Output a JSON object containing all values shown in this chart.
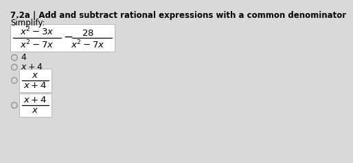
{
  "title": "7.2a | Add and subtract rational expressions with a common denominator",
  "subtitle": "Simplify:",
  "bg_color": "#d9d9d9",
  "box_color": "#ffffff",
  "title_fontsize": 8.5,
  "subtitle_fontsize": 8.5,
  "math_fontsize": 9.5,
  "option_fontsize": 9.0,
  "question_box": {
    "frac1_num": "$x^2 - 3x$",
    "frac1_den": "$x^2 - 7x$",
    "operator": "−",
    "frac2_num": "$28$",
    "frac2_den": "$x^2 - 7x$"
  },
  "radio_options": [
    {
      "label": "$4$",
      "is_fraction": false,
      "numerator": null,
      "denominator": null
    },
    {
      "label": "$x + 4$",
      "is_fraction": false,
      "numerator": null,
      "denominator": null
    },
    {
      "label": null,
      "is_fraction": true,
      "numerator": "$x$",
      "denominator": "$x+4$"
    },
    {
      "label": null,
      "is_fraction": true,
      "numerator": "$x+4$",
      "denominator": "$x$"
    }
  ]
}
